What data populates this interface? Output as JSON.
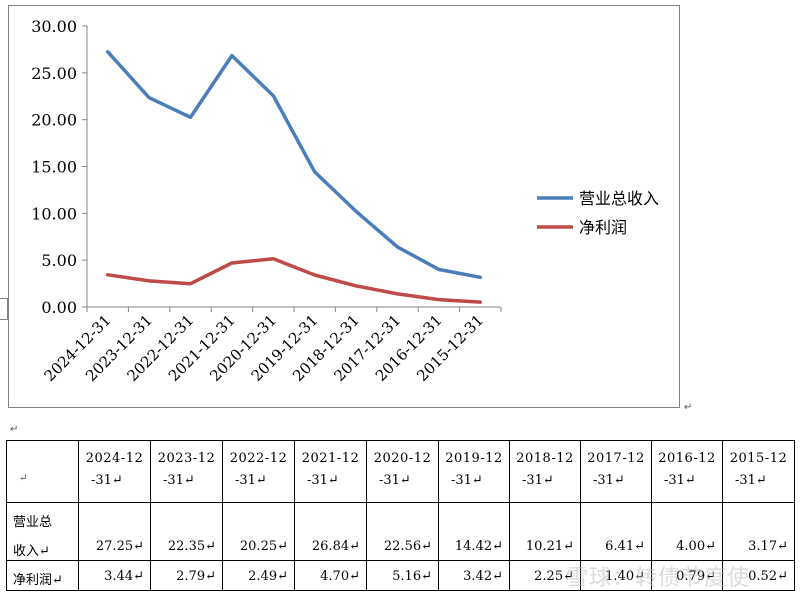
{
  "chart_data": {
    "type": "line",
    "categories": [
      "2024-12-31",
      "2023-12-31",
      "2022-12-31",
      "2021-12-31",
      "2020-12-31",
      "2019-12-31",
      "2018-12-31",
      "2017-12-31",
      "2016-12-31",
      "2015-12-31"
    ],
    "series": [
      {
        "name": "营业总收入",
        "values": [
          27.25,
          22.35,
          20.25,
          26.84,
          22.56,
          14.42,
          10.21,
          6.41,
          4.0,
          3.17
        ],
        "color": "#4a7ebb"
      },
      {
        "name": "净利润",
        "values": [
          3.44,
          2.79,
          2.49,
          4.7,
          5.16,
          3.42,
          2.25,
          1.4,
          0.79,
          0.52
        ],
        "color": "#be4b48"
      }
    ],
    "ylim": [
      0,
      30
    ],
    "yticks": [
      "0.00",
      "5.00",
      "10.00",
      "15.00",
      "20.00",
      "25.00",
      "30.00"
    ],
    "grid": false,
    "legend": "right"
  },
  "table": {
    "header_top": [
      "2024-12",
      "2023-12",
      "2022-12",
      "2021-12",
      "2020-12",
      "2019-12",
      "2018-12",
      "2017-12",
      "2016-12",
      "2015-12"
    ],
    "header_bottom": "-31",
    "rows": [
      {
        "label_line1": "营业总",
        "label_line2": "收入",
        "values": [
          "27.25",
          "22.35",
          "20.25",
          "26.84",
          "22.56",
          "14.42",
          "10.21",
          "6.41",
          "4.00",
          "3.17"
        ]
      },
      {
        "label_line1": "净利润",
        "label_line2": "",
        "values": [
          "3.44",
          "2.79",
          "2.49",
          "4.70",
          "5.16",
          "3.42",
          "2.25",
          "1.40",
          "0.79",
          "0.52"
        ]
      }
    ]
  },
  "marks": {
    "paragraph": "↵"
  },
  "watermark": "雪球：转债节度使"
}
